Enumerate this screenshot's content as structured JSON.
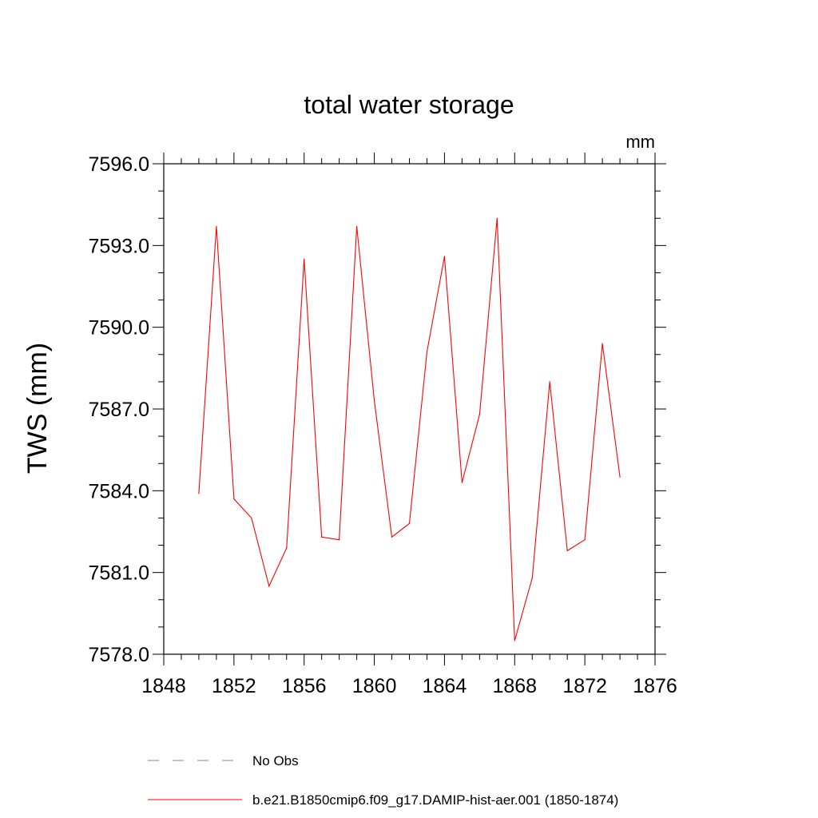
{
  "chart_data": {
    "type": "line",
    "title": "total water storage",
    "units": "mm",
    "ylabel": "TWS  (mm)",
    "xlabel": "",
    "xlim": [
      1848,
      1876
    ],
    "ylim": [
      7578.0,
      7596.0
    ],
    "x_ticks": [
      "1848",
      "1852",
      "1856",
      "1860",
      "1864",
      "1868",
      "1872",
      "1876"
    ],
    "y_ticks": [
      "7578.0",
      "7581.0",
      "7584.0",
      "7587.0",
      "7590.0",
      "7593.0",
      "7596.0"
    ],
    "grid": false,
    "legend_position": "bottom",
    "series": [
      {
        "name": "b.e21.B1850cmip6.f09_g17.DAMIP-hist-aer.001 (1850-1874)",
        "color": "#ff0000",
        "style": "solid",
        "x": [
          1850,
          1851,
          1852,
          1853,
          1854,
          1855,
          1856,
          1857,
          1858,
          1859,
          1860,
          1861,
          1862,
          1863,
          1864,
          1865,
          1866,
          1867,
          1868,
          1869,
          1870,
          1871,
          1872,
          1873,
          1874
        ],
        "values": [
          7583.9,
          7593.7,
          7583.7,
          7583.0,
          7580.5,
          7581.9,
          7592.5,
          7582.3,
          7582.2,
          7593.7,
          7587.3,
          7582.3,
          7582.8,
          7589.1,
          7592.6,
          7584.3,
          7586.8,
          7594.0,
          7578.5,
          7580.8,
          7588.0,
          7581.8,
          7582.2,
          7589.4,
          7584.5
        ]
      }
    ],
    "legend": [
      {
        "label": "No Obs",
        "color": "#8a7fc4",
        "style": "dashed"
      },
      {
        "label": "b.e21.B1850cmip6.f09_g17.DAMIP-hist-aer.001 (1850-1874)",
        "color": "#ff0000",
        "style": "solid"
      }
    ]
  }
}
